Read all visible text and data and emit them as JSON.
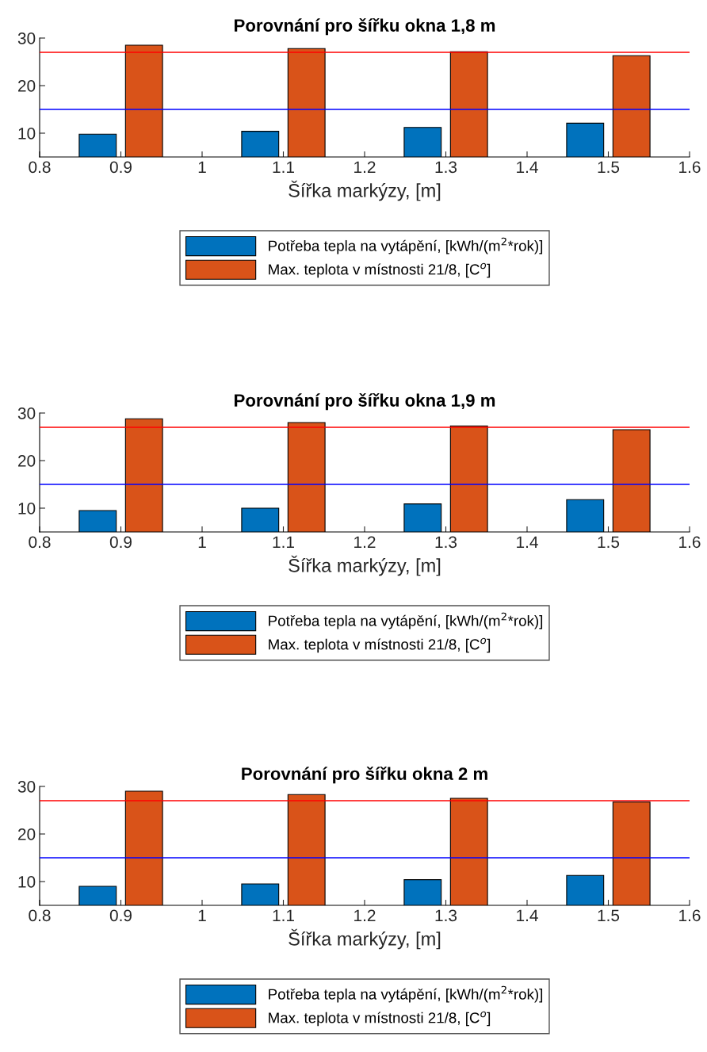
{
  "chart_data": [
    {
      "type": "bar",
      "title": "Porovnání pro šířku okna 1,8 m",
      "xlabel": "Šířka markýzy, [m]",
      "x": [
        0.9,
        1.1,
        1.3,
        1.5
      ],
      "xlim": [
        0.8,
        1.6
      ],
      "xticks": [
        0.8,
        0.9,
        1,
        1.1,
        1.2,
        1.3,
        1.4,
        1.5,
        1.6
      ],
      "ylim": [
        5,
        30
      ],
      "yticks": [
        10,
        20,
        30
      ],
      "grid": false,
      "legend": "bottom",
      "series": [
        {
          "name": "Potřeba tepla na vytápění, [kWh/(m$^{2}$*rok)]",
          "color": "#0072bd",
          "values": [
            9.8,
            10.4,
            11.2,
            12.1
          ]
        },
        {
          "name": "Max. teplota v místnosti 21/8, [C$^{o}$]",
          "color": "#d95319",
          "values": [
            28.5,
            27.8,
            27.1,
            26.3
          ]
        }
      ],
      "ref_lines": [
        {
          "axis": "y",
          "value": 27,
          "color": "#ff0000"
        },
        {
          "axis": "y",
          "value": 15,
          "color": "#0000ff"
        }
      ]
    },
    {
      "type": "bar",
      "title": "Porovnání pro šířku okna 1,9 m",
      "xlabel": "Šířka markýzy, [m]",
      "x": [
        0.9,
        1.1,
        1.3,
        1.5
      ],
      "xlim": [
        0.8,
        1.6
      ],
      "xticks": [
        0.8,
        0.9,
        1,
        1.1,
        1.2,
        1.3,
        1.4,
        1.5,
        1.6
      ],
      "ylim": [
        5,
        30
      ],
      "yticks": [
        10,
        20,
        30
      ],
      "grid": false,
      "legend": "bottom",
      "series": [
        {
          "name": "Potřeba tepla na vytápění, [kWh/(m$^{2}$*rok)]",
          "color": "#0072bd",
          "values": [
            9.5,
            10.0,
            10.9,
            11.8
          ]
        },
        {
          "name": "Max. teplota v místnosti 21/8, [C$^{o}$]",
          "color": "#d95319",
          "values": [
            28.8,
            28.0,
            27.3,
            26.5
          ]
        }
      ],
      "ref_lines": [
        {
          "axis": "y",
          "value": 27,
          "color": "#ff0000"
        },
        {
          "axis": "y",
          "value": 15,
          "color": "#0000ff"
        }
      ]
    },
    {
      "type": "bar",
      "title": "Porovnání pro šířku okna 2 m",
      "xlabel": "Šířka markýzy, [m]",
      "x": [
        0.9,
        1.1,
        1.3,
        1.5
      ],
      "xlim": [
        0.8,
        1.6
      ],
      "xticks": [
        0.8,
        0.9,
        1,
        1.1,
        1.2,
        1.3,
        1.4,
        1.5,
        1.6
      ],
      "ylim": [
        5,
        30
      ],
      "yticks": [
        10,
        20,
        30
      ],
      "grid": false,
      "legend": "bottom",
      "series": [
        {
          "name": "Potřeba tepla na vytápění, [kWh/(m$^{2}$*rok)]",
          "color": "#0072bd",
          "values": [
            9.0,
            9.5,
            10.4,
            11.3
          ]
        },
        {
          "name": "Max. teplota v místnosti 21/8, [C$^{o}$]",
          "color": "#d95319",
          "values": [
            29.0,
            28.3,
            27.5,
            26.7
          ]
        }
      ],
      "ref_lines": [
        {
          "axis": "y",
          "value": 27,
          "color": "#ff0000"
        },
        {
          "axis": "y",
          "value": 15,
          "color": "#0000ff"
        }
      ]
    }
  ]
}
